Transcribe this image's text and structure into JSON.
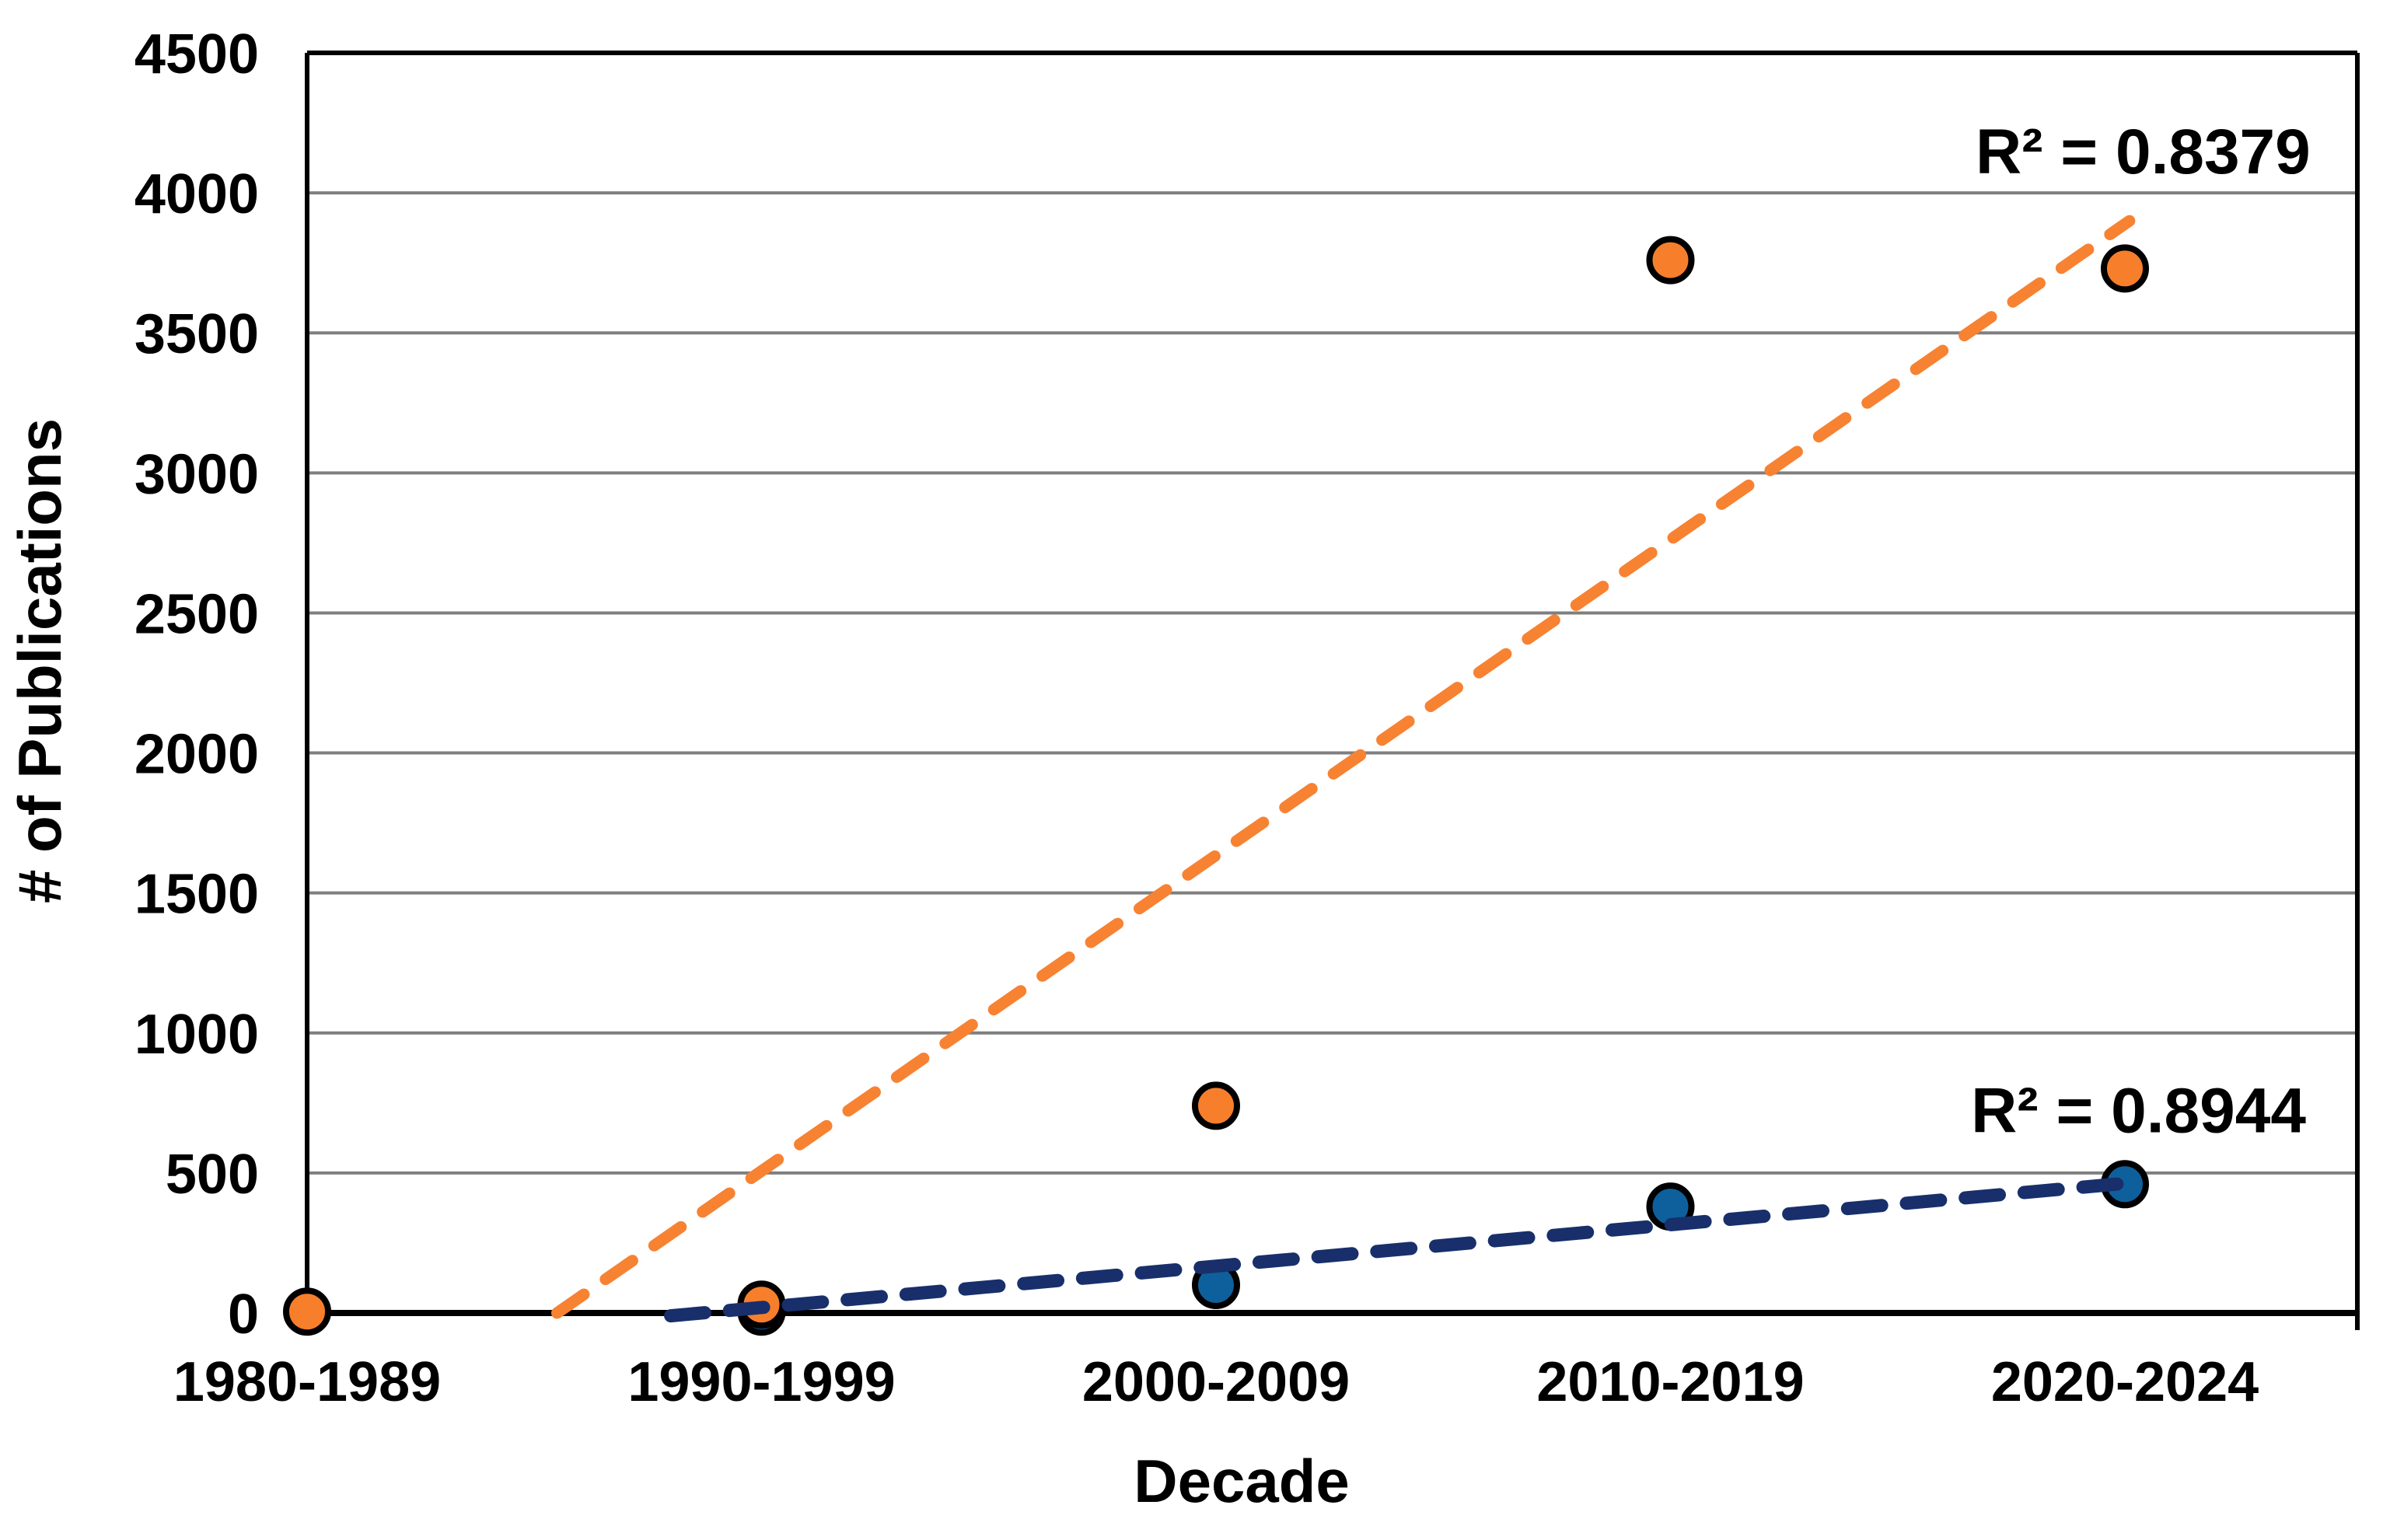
{
  "chart_data": {
    "type": "scatter",
    "title": "",
    "xlabel": "Decade",
    "ylabel": "# of Publications",
    "categories": [
      "1980-1989",
      "1990-1999",
      "2000-2009",
      "2010-2019",
      "2020-2024"
    ],
    "y_ticks": [
      0,
      500,
      1000,
      1500,
      2000,
      2500,
      3000,
      3500,
      4000,
      4500
    ],
    "ylim": [
      0,
      4500
    ],
    "grid": "horizontal-gray",
    "legend": "none",
    "series": [
      {
        "name": "orange-series",
        "marker_color": "#F77E2B",
        "values": [
          5,
          30,
          740,
          3760,
          3730
        ],
        "trendline": {
          "style": "dashed",
          "color": "#F78232",
          "x1": 1.55,
          "y1": 0,
          "x2": 5.01,
          "y2": 3900
        },
        "r2_label": "R² = 0.8379",
        "r2_pos": {
          "x": 5.04,
          "y": 4070
        }
      },
      {
        "name": "blue-series",
        "marker_color": "#0E609C",
        "values": [
          null,
          5,
          100,
          380,
          460
        ],
        "trendline": {
          "style": "dashed",
          "color": "#182F6B",
          "x1": 1.8,
          "y1": -10,
          "x2": 5.02,
          "y2": 466
        },
        "r2_label": "R² = 0.8944",
        "r2_pos": {
          "x": 5.03,
          "y": 645
        }
      }
    ],
    "colors": {
      "grid": "#7F7F7F",
      "axis": "#000000",
      "text": "#000000",
      "background": "#FFFFFF"
    }
  }
}
